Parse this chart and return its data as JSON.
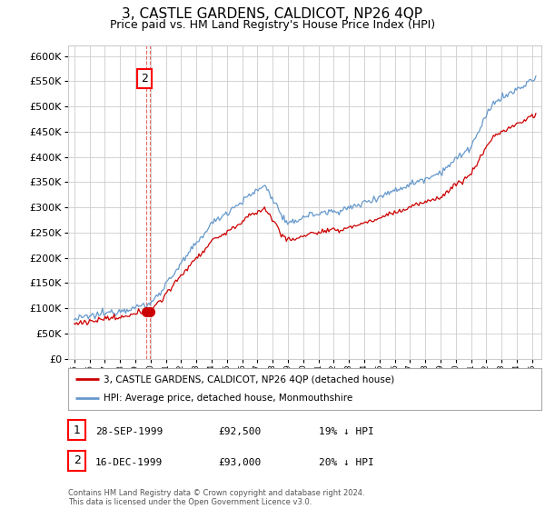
{
  "title": "3, CASTLE GARDENS, CALDICOT, NP26 4QP",
  "subtitle": "Price paid vs. HM Land Registry's House Price Index (HPI)",
  "title_fontsize": 11,
  "subtitle_fontsize": 9,
  "ylim": [
    0,
    620000
  ],
  "yticks": [
    0,
    50000,
    100000,
    150000,
    200000,
    250000,
    300000,
    350000,
    400000,
    450000,
    500000,
    550000,
    600000
  ],
  "xlim_start": 1994.6,
  "xlim_end": 2025.6,
  "grid_color": "#cccccc",
  "background_color": "#ffffff",
  "hpi_line_color": "#6699cc",
  "price_line_color": "#cc0000",
  "dashed_line_color": "#dd4444",
  "sale1_date_num": 1999.74,
  "sale2_date_num": 1999.96,
  "sale1_price": 92500,
  "sale2_price": 93000,
  "legend_label_red": "3, CASTLE GARDENS, CALDICOT, NP26 4QP (detached house)",
  "legend_label_blue": "HPI: Average price, detached house, Monmouthshire",
  "table_rows": [
    {
      "num": "1",
      "date": "28-SEP-1999",
      "price": "£92,500",
      "change": "19% ↓ HPI"
    },
    {
      "num": "2",
      "date": "16-DEC-1999",
      "price": "£93,000",
      "change": "20% ↓ HPI"
    }
  ],
  "footer": "Contains HM Land Registry data © Crown copyright and database right 2024.\nThis data is licensed under the Open Government Licence v3.0.",
  "marker1_x": 1999.74,
  "marker1_y": 92500,
  "marker2_x": 1999.96,
  "marker2_y": 93000
}
